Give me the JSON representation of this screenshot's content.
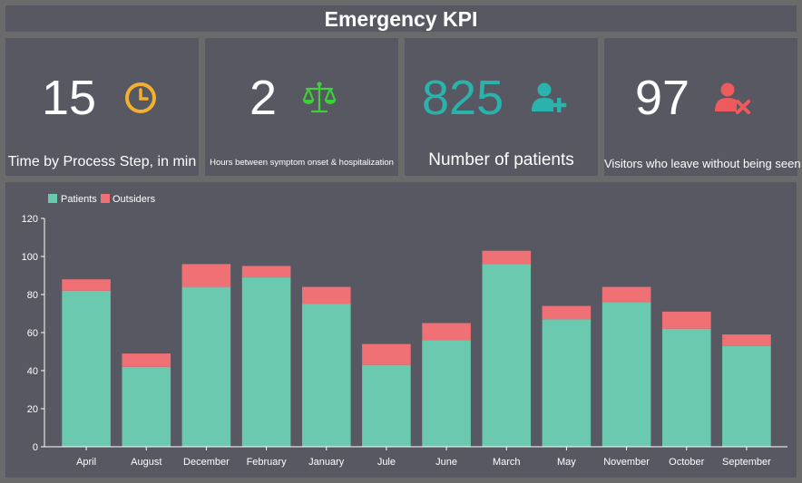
{
  "header": {
    "title": "Emergency KPI"
  },
  "kpis": [
    {
      "value": "15",
      "label": "Time by Process Step, in min",
      "icon": "clock-icon",
      "color": "#f3b02f"
    },
    {
      "value": "2",
      "label": "Hours between symptom onset & hospitalization",
      "icon": "scale-icon",
      "color": "#3ecf3a"
    },
    {
      "value": "825",
      "label": "Number of patients",
      "icon": "user-add-icon",
      "color": "#2ab3ac"
    },
    {
      "value": "97",
      "label": "Visitors who leave without being seen",
      "icon": "user-remove-icon",
      "color": "#ef5a5f"
    }
  ],
  "colors": {
    "patients": "#6bc9b0",
    "outsiders": "#ef7075"
  },
  "chart_data": {
    "type": "bar",
    "stacked": true,
    "categories": [
      "April",
      "August",
      "December",
      "February",
      "January",
      "Jule",
      "June",
      "March",
      "May",
      "November",
      "October",
      "September"
    ],
    "series": [
      {
        "name": "Patients",
        "values": [
          82,
          42,
          84,
          89,
          75,
          43,
          56,
          96,
          67,
          76,
          62,
          53
        ]
      },
      {
        "name": "Outsiders",
        "values": [
          6,
          7,
          12,
          6,
          9,
          11,
          9,
          7,
          7,
          8,
          9,
          6
        ]
      }
    ],
    "yticks": [
      0,
      20,
      40,
      60,
      80,
      100,
      120
    ],
    "ylim": [
      0,
      120
    ],
    "legend": "top-left",
    "title": "",
    "xlabel": "",
    "ylabel": ""
  }
}
